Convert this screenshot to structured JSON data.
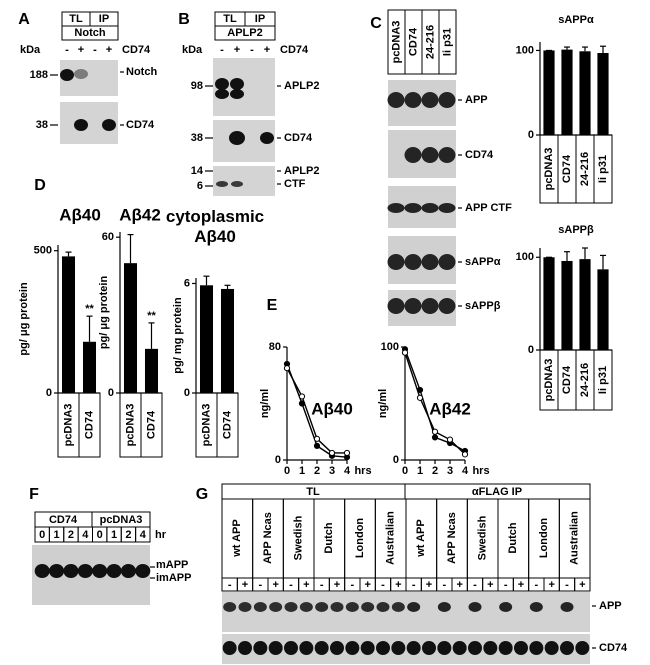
{
  "A": {
    "label": "A",
    "groups": [
      "TL",
      "IP"
    ],
    "antibody": "Notch",
    "kda": "kDa",
    "lanes": [
      "-",
      "+",
      "-",
      "+"
    ],
    "treatment": "CD74",
    "markers": [
      "188",
      "38"
    ],
    "bands": [
      "Notch",
      "CD74"
    ]
  },
  "B": {
    "label": "B",
    "groups": [
      "TL",
      "IP"
    ],
    "antibody": "APLP2",
    "kda": "kDa",
    "lanes": [
      "-",
      "+",
      "-",
      "+"
    ],
    "treatment": "CD74",
    "markers": [
      "98",
      "38",
      "14",
      "6"
    ],
    "bands": [
      "APLP2",
      "CD74",
      "APLP2",
      "CTF"
    ]
  },
  "C": {
    "label": "C",
    "lanes": [
      "pcDNA3",
      "CD74",
      "24-216",
      "Ii p31"
    ],
    "bands": [
      "APP",
      "CD74",
      "APP CTF",
      "sAPPα",
      "sAPPβ"
    ],
    "charts": [
      {
        "type": "bar",
        "title": "sAPPα",
        "categories": [
          "pcDNA3",
          "CD74",
          "24-216",
          "Ii p31"
        ],
        "values": [
          100,
          101,
          99,
          97
        ],
        "errors": [
          0,
          3,
          5,
          8
        ],
        "ylim": [
          0,
          110
        ],
        "yticks": [
          0,
          100
        ]
      },
      {
        "type": "bar",
        "title": "sAPPβ",
        "categories": [
          "pcDNA3",
          "CD74",
          "24-216",
          "Ii p31"
        ],
        "values": [
          100,
          96,
          98,
          87
        ],
        "errors": [
          0,
          10,
          12,
          15
        ],
        "ylim": [
          0,
          110
        ],
        "yticks": [
          0,
          100
        ]
      }
    ]
  },
  "D": {
    "label": "D",
    "charts": [
      {
        "type": "bar",
        "title": "Aβ40",
        "ylabel": "pg/ μg protein",
        "categories": [
          "pcDNA3",
          "CD74"
        ],
        "values": [
          480,
          180
        ],
        "errors": [
          15,
          90
        ],
        "annotations": [
          null,
          "**"
        ],
        "ylim": [
          0,
          520
        ],
        "yticks": [
          0,
          500
        ]
      },
      {
        "type": "bar",
        "title": "Aβ42",
        "ylabel": "pg/ μg protein",
        "categories": [
          "pcDNA3",
          "CD74"
        ],
        "values": [
          50,
          17
        ],
        "errors": [
          11,
          10
        ],
        "annotations": [
          null,
          "**"
        ],
        "ylim": [
          0,
          62
        ],
        "yticks": [
          0,
          60
        ]
      },
      {
        "type": "bar",
        "title": "cytoplasmic Aβ40",
        "ylabel": "pg/ mg protein",
        "categories": [
          "pcDNA3",
          "CD74"
        ],
        "values": [
          5.9,
          5.7
        ],
        "errors": [
          0.5,
          0.2
        ],
        "ylim": [
          0,
          6.3
        ],
        "yticks": [
          0,
          6
        ]
      }
    ]
  },
  "E": {
    "label": "E",
    "charts": [
      {
        "type": "line",
        "title": "Aβ40",
        "ylabel": "ng/ml",
        "xunit": "hrs",
        "x": [
          0,
          1,
          2,
          3,
          4
        ],
        "xlim": [
          0,
          4
        ],
        "xticks": [
          0,
          1,
          2,
          3,
          4
        ],
        "ylim": [
          0,
          80
        ],
        "yticks": [
          0,
          80
        ],
        "series": [
          {
            "color": "#000000",
            "marker": "filled",
            "values": [
              68,
              40,
              10,
              3,
              2
            ]
          },
          {
            "color": "#000000",
            "marker": "open",
            "values": [
              65,
              45,
              15,
              5,
              5
            ]
          }
        ]
      },
      {
        "type": "line",
        "title": "Aβ42",
        "ylabel": "ng/ml",
        "xunit": "hrs",
        "x": [
          0,
          1,
          2,
          3,
          4
        ],
        "xlim": [
          0,
          4
        ],
        "xticks": [
          0,
          1,
          2,
          3,
          4
        ],
        "ylim": [
          0,
          100
        ],
        "yticks": [
          0,
          100
        ],
        "series": [
          {
            "color": "#000000",
            "marker": "filled",
            "values": [
              98,
              62,
              20,
              15,
              8
            ]
          },
          {
            "color": "#000000",
            "marker": "open",
            "values": [
              95,
              55,
              25,
              18,
              5
            ]
          }
        ]
      }
    ]
  },
  "F": {
    "label": "F",
    "groups": [
      "CD74",
      "pcDNA3"
    ],
    "unit": "hr",
    "lanes": [
      "0",
      "1",
      "2",
      "4",
      "0",
      "1",
      "2",
      "4"
    ],
    "bands": [
      "mAPP",
      "imAPP"
    ]
  },
  "G": {
    "label": "G",
    "groups": [
      "TL",
      "αFLAG IP"
    ],
    "constructs": [
      "wt APP",
      "APP Ncas",
      "Swedish",
      "Dutch",
      "London",
      "Australian",
      "wt APP",
      "APP Ncas",
      "Swedish",
      "Dutch",
      "London",
      "Australian"
    ],
    "lanes": [
      "-",
      "+"
    ],
    "bands": [
      "APP",
      "CD74"
    ]
  }
}
